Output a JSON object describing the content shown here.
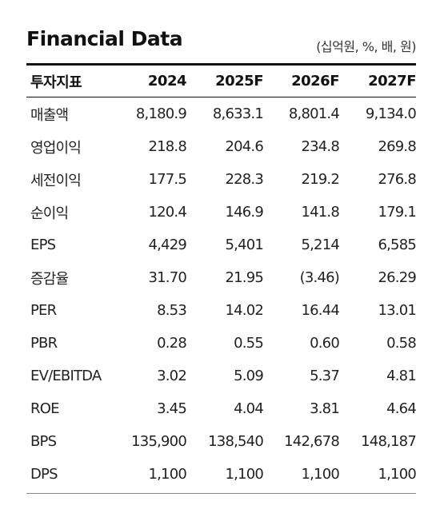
{
  "title": "Financial Data",
  "unit_note": "(십억원, %, 배, 원)",
  "columns": [
    "투자지표",
    "2024",
    "2025F",
    "2026F",
    "2027F"
  ],
  "rows": [
    {
      "label": "매출액",
      "values": [
        "8,180.9",
        "8,633.1",
        "8,801.4",
        "9,134.0"
      ]
    },
    {
      "label": "영업이익",
      "values": [
        "218.8",
        "204.6",
        "234.8",
        "269.8"
      ]
    },
    {
      "label": "세전이익",
      "values": [
        "177.5",
        "228.3",
        "219.2",
        "276.8"
      ]
    },
    {
      "label": "순이익",
      "values": [
        "120.4",
        "146.9",
        "141.8",
        "179.1"
      ]
    },
    {
      "label": "EPS",
      "values": [
        "4,429",
        "5,401",
        "5,214",
        "6,585"
      ]
    },
    {
      "label": "증감율",
      "values": [
        "31.70",
        "21.95",
        "(3.46)",
        "26.29"
      ]
    },
    {
      "label": "PER",
      "values": [
        "8.53",
        "14.02",
        "16.44",
        "13.01"
      ]
    },
    {
      "label": "PBR",
      "values": [
        "0.28",
        "0.55",
        "0.60",
        "0.58"
      ]
    },
    {
      "label": "EV/EBITDA",
      "values": [
        "3.02",
        "5.09",
        "5.37",
        "4.81"
      ]
    },
    {
      "label": "ROE",
      "values": [
        "3.45",
        "4.04",
        "3.81",
        "4.64"
      ]
    },
    {
      "label": "BPS",
      "values": [
        "135,900",
        "138,540",
        "142,678",
        "148,187"
      ]
    },
    {
      "label": "DPS",
      "values": [
        "1,100",
        "1,100",
        "1,100",
        "1,100"
      ]
    }
  ]
}
